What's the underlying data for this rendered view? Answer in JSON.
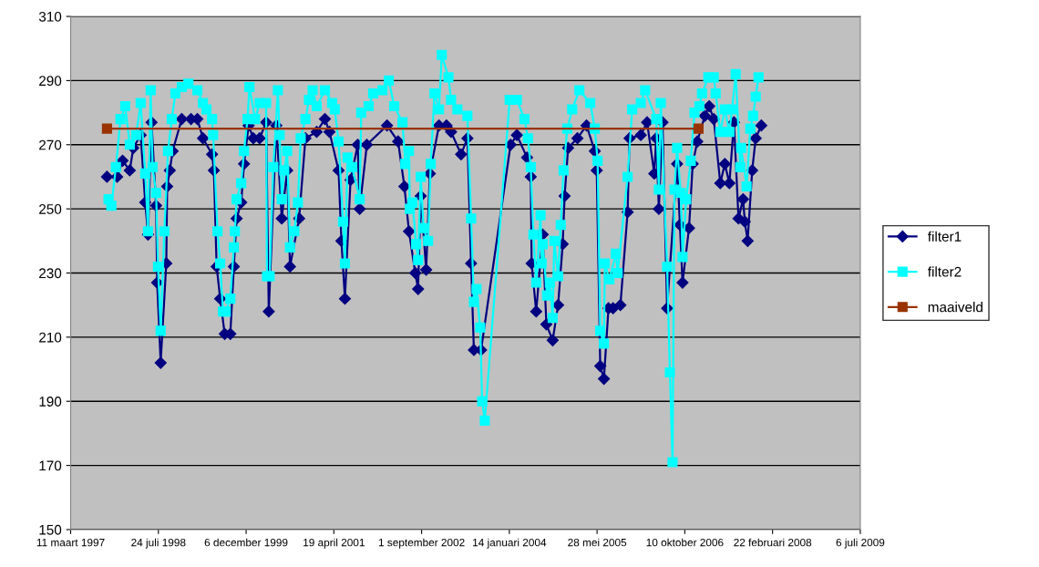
{
  "chart_data": {
    "type": "line",
    "xlim": [
      "1997-03-11",
      "2009-07-06"
    ],
    "xticks": [
      {
        "value": "1997-03-11",
        "label": "11 maart 1997"
      },
      {
        "value": "1998-07-24",
        "label": "24 juli 1998"
      },
      {
        "value": "1999-12-06",
        "label": "6 december 1999"
      },
      {
        "value": "2001-04-19",
        "label": "19 april 2001"
      },
      {
        "value": "2002-09-01",
        "label": "1 september 2002"
      },
      {
        "value": "2004-01-14",
        "label": "14 januari 2004"
      },
      {
        "value": "2005-05-28",
        "label": "28 mei 2005"
      },
      {
        "value": "2006-10-10",
        "label": "10 oktober 2006"
      },
      {
        "value": "2008-02-22",
        "label": "22 februari 2008"
      },
      {
        "value": "2009-07-06",
        "label": "6 juli 2009"
      }
    ],
    "ylim": [
      150,
      310
    ],
    "yticks": [
      150,
      170,
      190,
      210,
      230,
      250,
      270,
      290,
      310
    ],
    "grid": "y",
    "legend": "right",
    "series": [
      {
        "name": "filter1",
        "color": "#000080",
        "marker": "diamond",
        "x": [
          "1997-10-04",
          "1997-12-01",
          "1998-01-01",
          "1998-02-11",
          "1998-03-03",
          "1998-04-14",
          "1998-05-10",
          "1998-05-26",
          "1998-06-15",
          "1998-07-11",
          "1998-07-17",
          "1998-08-06",
          "1998-09-07",
          "1998-09-12",
          "1998-09-27",
          "1998-10-13",
          "1998-12-04",
          "1999-01-26",
          "1999-03-03",
          "1999-04-04",
          "1999-05-26",
          "1999-06-05",
          "1999-06-21",
          "1999-07-11",
          "1999-08-06",
          "1999-09-07",
          "1999-09-27",
          "1999-10-13",
          "1999-11-08",
          "1999-11-24",
          "1999-12-20",
          "2000-01-16",
          "2000-02-21",
          "2000-03-29",
          "2000-04-13",
          "2000-05-26",
          "2000-06-26",
          "2000-07-27",
          "2000-08-12",
          "2000-10-03",
          "2000-11-08",
          "2001-01-11",
          "2001-02-27",
          "2001-03-25",
          "2001-05-16",
          "2001-06-01",
          "2001-06-21",
          "2001-07-23",
          "2001-09-02",
          "2001-09-13",
          "2001-10-24",
          "2002-02-16",
          "2002-04-20",
          "2002-05-26",
          "2002-06-21",
          "2002-07-27",
          "2002-08-12",
          "2002-08-27",
          "2002-09-27",
          "2002-10-18",
          "2002-12-09",
          "2003-01-21",
          "2003-02-16",
          "2003-04-14",
          "2003-05-20",
          "2003-06-10",
          "2003-06-26",
          "2003-08-06",
          "2004-01-21",
          "2004-02-26",
          "2004-04-24",
          "2004-05-15",
          "2004-05-20",
          "2004-06-15",
          "2004-07-22",
          "2004-08-12",
          "2004-09-17",
          "2004-10-18",
          "2004-11-13",
          "2004-11-24",
          "2004-12-14",
          "2005-02-05",
          "2005-03-29",
          "2005-05-15",
          "2005-05-26",
          "2005-06-15",
          "2005-07-06",
          "2005-08-01",
          "2005-08-27",
          "2005-10-08",
          "2005-11-18",
          "2005-11-29",
          "2006-02-01",
          "2006-03-09",
          "2006-04-19",
          "2006-04-30",
          "2006-05-15",
          "2006-06-05",
          "2006-07-01",
          "2006-08-27",
          "2006-09-12",
          "2006-09-27",
          "2006-11-03",
          "2006-11-24",
          "2006-12-20",
          "2007-02-01",
          "2007-02-26",
          "2007-03-24",
          "2007-04-30",
          "2007-05-26",
          "2007-06-21",
          "2007-07-17",
          "2007-08-12",
          "2007-09-07",
          "2007-09-17",
          "2007-10-03",
          "2007-10-29",
          "2007-11-18",
          "2007-12-20"
        ],
        "values": [
          260,
          260,
          265,
          262,
          269,
          273,
          252,
          242,
          277,
          251,
          227,
          202,
          233,
          257,
          262,
          268,
          278,
          278,
          278,
          272,
          267,
          262,
          232,
          222,
          211,
          211,
          232,
          247,
          252,
          264,
          276,
          272,
          272,
          277,
          218,
          276,
          247,
          262,
          232,
          247,
          272,
          274,
          278,
          274,
          262,
          240,
          222,
          259,
          270,
          250,
          270,
          276,
          271,
          257,
          243,
          230,
          225,
          254,
          231,
          261,
          276,
          276,
          274,
          267,
          272,
          233,
          206,
          206,
          270,
          273,
          266,
          260,
          233,
          218,
          242,
          214,
          209,
          220,
          239,
          254,
          269,
          272,
          276,
          268,
          262,
          201,
          197,
          219,
          219,
          220,
          249,
          272,
          273,
          277,
          261,
          272,
          250,
          277,
          219,
          264,
          245,
          227,
          244,
          264,
          271,
          279,
          282,
          278,
          258,
          264,
          258,
          277,
          247,
          253,
          246,
          240,
          262,
          272,
          276
        ]
      },
      {
        "name": "filter2",
        "color": "#00ffff",
        "marker": "square",
        "x": [
          "1997-10-13",
          "1997-10-29",
          "1997-11-24",
          "1997-12-20",
          "1998-01-16",
          "1998-02-11",
          "1998-03-19",
          "1998-04-14",
          "1998-05-10",
          "1998-05-26",
          "1998-06-10",
          "1998-06-21",
          "1998-07-11",
          "1998-07-22",
          "1998-08-06",
          "1998-08-27",
          "1998-09-17",
          "1998-10-08",
          "1998-10-29",
          "1998-12-04",
          "1999-01-11",
          "1999-03-03",
          "1999-04-04",
          "1999-04-24",
          "1999-05-26",
          "1999-06-01",
          "1999-06-26",
          "1999-07-11",
          "1999-07-27",
          "1999-08-12",
          "1999-09-07",
          "1999-09-27",
          "1999-10-03",
          "1999-10-13",
          "1999-11-08",
          "1999-11-24",
          "1999-12-14",
          "1999-12-25",
          "2000-01-26",
          "2000-02-21",
          "2000-03-29",
          "2000-04-03",
          "2000-04-18",
          "2000-05-09",
          "2000-06-04",
          "2000-06-14",
          "2000-06-26",
          "2000-07-10",
          "2000-07-27",
          "2000-08-12",
          "2000-09-06",
          "2000-09-26",
          "2000-10-12",
          "2000-11-08",
          "2000-11-28",
          "2000-12-19",
          "2001-01-11",
          "2001-02-27",
          "2001-04-09",
          "2001-04-24",
          "2001-05-16",
          "2001-06-10",
          "2001-06-21",
          "2001-07-06",
          "2001-08-01",
          "2001-09-13",
          "2001-09-22",
          "2001-11-03",
          "2001-11-29",
          "2002-01-21",
          "2002-02-26",
          "2002-03-29",
          "2002-05-15",
          "2002-05-31",
          "2002-06-21",
          "2002-06-26",
          "2002-07-11",
          "2002-08-01",
          "2002-08-12",
          "2002-08-27",
          "2002-09-12",
          "2002-10-08",
          "2002-10-23",
          "2002-11-13",
          "2002-12-09",
          "2002-12-25",
          "2003-02-01",
          "2003-02-16",
          "2003-03-24",
          "2003-05-20",
          "2003-06-10",
          "2003-06-26",
          "2003-07-11",
          "2003-08-01",
          "2003-08-12",
          "2003-08-27",
          "2004-01-16",
          "2004-02-26",
          "2004-04-09",
          "2004-04-29",
          "2004-05-15",
          "2004-05-30",
          "2004-06-15",
          "2004-07-10",
          "2004-07-16",
          "2004-07-22",
          "2004-08-16",
          "2004-09-01",
          "2004-09-17",
          "2004-09-26",
          "2004-10-18",
          "2004-11-02",
          "2004-11-18",
          "2004-12-09",
          "2005-01-06",
          "2005-02-16",
          "2005-04-19",
          "2005-05-15",
          "2005-05-31",
          "2005-06-15",
          "2005-07-06",
          "2005-07-11",
          "2005-08-06",
          "2005-09-12",
          "2005-09-22",
          "2005-11-18",
          "2005-12-14",
          "2006-02-01",
          "2006-02-26",
          "2006-04-30",
          "2006-05-15",
          "2006-05-26",
          "2006-07-01",
          "2006-07-17",
          "2006-08-01",
          "2006-08-12",
          "2006-08-27",
          "2006-09-17",
          "2006-09-27",
          "2006-10-18",
          "2006-11-13",
          "2006-12-04",
          "2007-01-01",
          "2007-01-16",
          "2007-02-21",
          "2007-03-24",
          "2007-04-04",
          "2007-04-30",
          "2007-05-26",
          "2007-06-21",
          "2007-07-06",
          "2007-07-27",
          "2007-08-22",
          "2007-08-27",
          "2007-09-27",
          "2007-10-18",
          "2007-11-03",
          "2007-11-18",
          "2007-12-04"
        ],
        "values": [
          253,
          251,
          263,
          278,
          282,
          270,
          273,
          283,
          261,
          243,
          287,
          263,
          255,
          232,
          212,
          243,
          268,
          278,
          286,
          288,
          289,
          287,
          283,
          281,
          278,
          273,
          243,
          233,
          218,
          218,
          222,
          238,
          243,
          253,
          258,
          268,
          278,
          288,
          278,
          283,
          283,
          229,
          229,
          263,
          287,
          273,
          253,
          262,
          268,
          238,
          243,
          252,
          272,
          278,
          284,
          287,
          282,
          287,
          283,
          281,
          271,
          246,
          233,
          266,
          263,
          253,
          280,
          282,
          286,
          287,
          290,
          282,
          277,
          264,
          268,
          250,
          252,
          239,
          234,
          260,
          244,
          240,
          264,
          286,
          281,
          298,
          291,
          284,
          281,
          279,
          247,
          221,
          225,
          213,
          190,
          184,
          284,
          284,
          278,
          272,
          263,
          242,
          227,
          248,
          233,
          239,
          223,
          227,
          216,
          240,
          229,
          245,
          262,
          275,
          281,
          287,
          283,
          275,
          265,
          212,
          208,
          233,
          228,
          236,
          230,
          260,
          281,
          283,
          287,
          278,
          256,
          283,
          232,
          199,
          171,
          256,
          269,
          255,
          235,
          253,
          265,
          280,
          282,
          286,
          291,
          291,
          286,
          274,
          281,
          274,
          281,
          292,
          263,
          269,
          257,
          275,
          279,
          285,
          291
        ]
      },
      {
        "name": "maaiveld",
        "color": "#993300",
        "marker": "square",
        "x": [
          "1997-10-04",
          "2006-12-27"
        ],
        "values": [
          275,
          275
        ]
      }
    ]
  }
}
